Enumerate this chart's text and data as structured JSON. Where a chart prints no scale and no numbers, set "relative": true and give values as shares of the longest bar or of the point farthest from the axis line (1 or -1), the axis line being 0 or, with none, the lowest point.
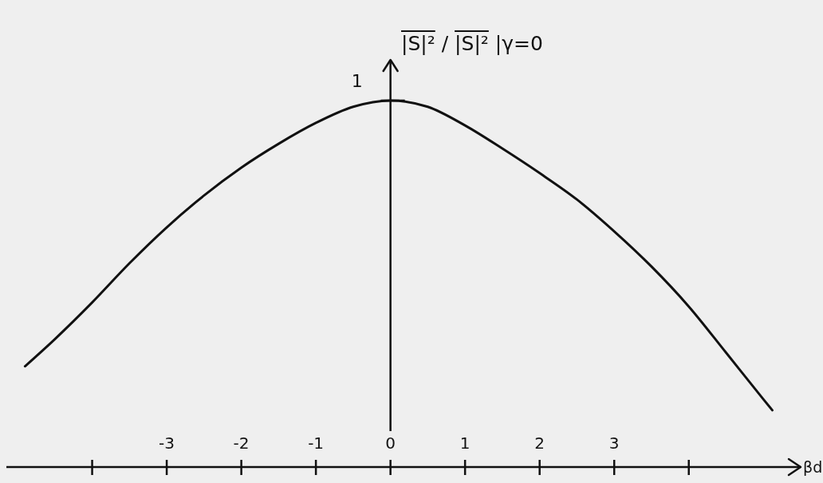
{
  "chart_data": {
    "type": "line",
    "xlabel": "βd",
    "ylabel": "|S|² / |S|² |γ=0",
    "relative": true,
    "xlim": [
      -5.15,
      5.5
    ],
    "xticks": [
      {
        "value": -4,
        "label": null
      },
      -3,
      -2,
      -1,
      0,
      1,
      2,
      3,
      {
        "value": 4,
        "label": null
      }
    ],
    "x": [
      -4.9,
      -4.5,
      -4,
      -3.5,
      -3,
      -2.5,
      -2,
      -1.5,
      -1,
      -0.5,
      0,
      0.5,
      1,
      1.5,
      2,
      2.5,
      3,
      3.5,
      4,
      4.5,
      5,
      5.12
    ],
    "series": [
      {
        "color": "#111111",
        "values": [
          0.275,
          0.349,
          0.449,
          0.556,
          0.654,
          0.741,
          0.817,
          0.882,
          0.939,
          0.983,
          1,
          0.983,
          0.932,
          0.869,
          0.802,
          0.73,
          0.643,
          0.547,
          0.438,
          0.312,
          0.185,
          0.155
        ]
      }
    ],
    "annotations": [
      {
        "text": "1",
        "x": 0,
        "y": 1
      }
    ],
    "marker": "none",
    "line_style": "solid"
  }
}
